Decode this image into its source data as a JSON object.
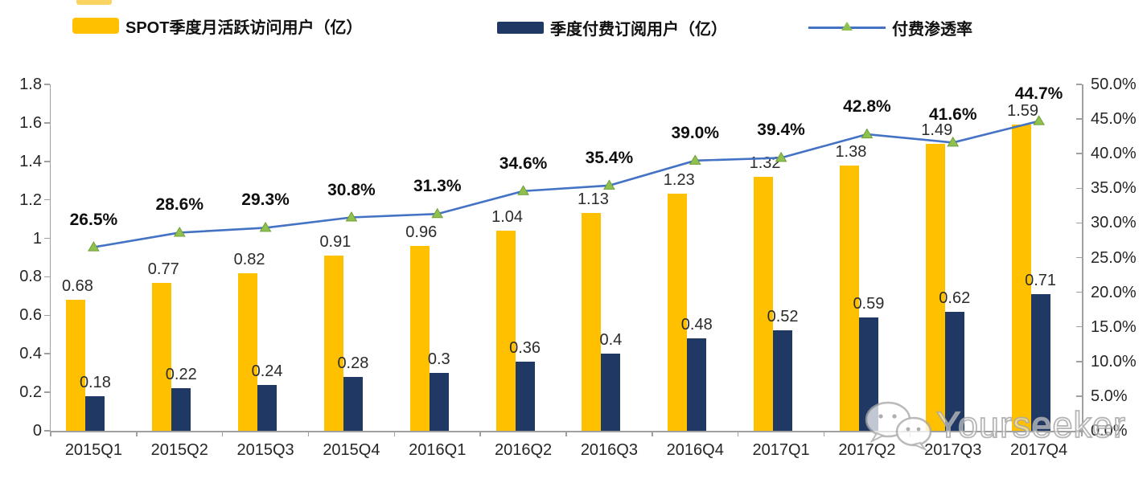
{
  "legend": {
    "mau_label": "SPOT季度月活跃访问用户（亿）",
    "subs_label": "季度付费订阅用户（亿）",
    "penetration_label": "付费渗透率"
  },
  "colors": {
    "mau_bar": "#FFC000",
    "subs_bar": "#1F3864",
    "penetration_line": "#4472C4",
    "marker_fill": "#8FC050",
    "marker_stroke": "#6FA035",
    "axis": "#a0a0a0"
  },
  "chart_data": {
    "type": "bar",
    "subtype": "combo-bar-line",
    "categories": [
      "2015Q1",
      "2015Q2",
      "2015Q3",
      "2015Q4",
      "2016Q1",
      "2016Q2",
      "2016Q3",
      "2016Q4",
      "2017Q1",
      "2017Q2",
      "2017Q3",
      "2017Q4"
    ],
    "series": [
      {
        "name": "SPOT季度月活跃访问用户（亿）",
        "type": "bar",
        "axis": "left",
        "color": "#FFC000",
        "values": [
          0.68,
          0.77,
          0.82,
          0.91,
          0.96,
          1.04,
          1.13,
          1.23,
          1.32,
          1.38,
          1.49,
          1.59
        ],
        "labels": [
          "0.68",
          "0.77",
          "0.82",
          "0.91",
          "0.96",
          "1.04",
          "1.13",
          "1.23",
          "1.32",
          "1.38",
          "1.49",
          "1.59"
        ]
      },
      {
        "name": "季度付费订阅用户（亿）",
        "type": "bar",
        "axis": "left",
        "color": "#1F3864",
        "values": [
          0.18,
          0.22,
          0.24,
          0.28,
          0.3,
          0.36,
          0.4,
          0.48,
          0.52,
          0.59,
          0.62,
          0.71
        ],
        "labels": [
          "0.18",
          "0.22",
          "0.24",
          "0.28",
          "0.3",
          "0.36",
          "0.4",
          "0.48",
          "0.52",
          "0.59",
          "0.62",
          "0.71"
        ]
      },
      {
        "name": "付费渗透率",
        "type": "line",
        "axis": "right",
        "color": "#4472C4",
        "marker": "triangle",
        "values": [
          26.5,
          28.6,
          29.3,
          30.8,
          31.3,
          34.6,
          35.4,
          39.0,
          39.4,
          42.8,
          41.6,
          44.7
        ],
        "labels": [
          "26.5%",
          "28.6%",
          "29.3%",
          "30.8%",
          "31.3%",
          "34.6%",
          "35.4%",
          "39.0%",
          "39.4%",
          "42.8%",
          "41.6%",
          "44.7%"
        ]
      }
    ],
    "left_axis": {
      "min": 0,
      "max": 1.8,
      "step": 0.2,
      "ticks": [
        "0",
        "0.2",
        "0.4",
        "0.6",
        "0.8",
        "1",
        "1.2",
        "1.4",
        "1.6",
        "1.8"
      ]
    },
    "right_axis": {
      "min": 0,
      "max": 50,
      "step": 5,
      "ticks": [
        "0.0%",
        "5.0%",
        "10.0%",
        "15.0%",
        "20.0%",
        "25.0%",
        "30.0%",
        "35.0%",
        "40.0%",
        "45.0%",
        "50.0%"
      ]
    },
    "grid": false,
    "legend_position": "top",
    "title": ""
  },
  "watermark": {
    "text": "Yourseeker",
    "icon": "wechat-icon"
  }
}
